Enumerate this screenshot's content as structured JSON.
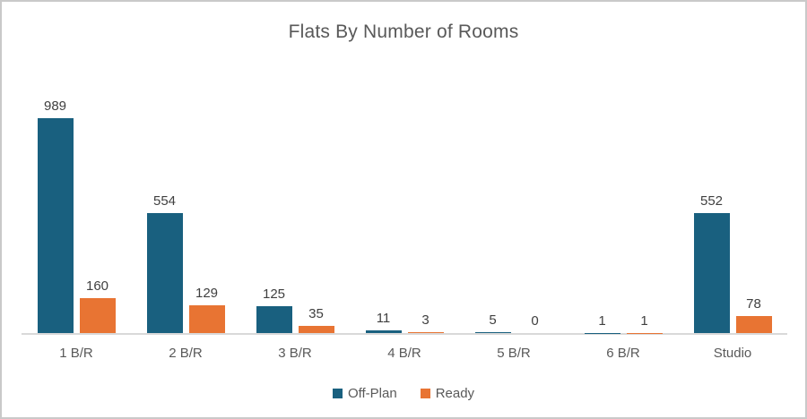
{
  "chart_data": {
    "type": "bar",
    "title": "Flats By Number of Rooms",
    "categories": [
      "1 B/R",
      "2 B/R",
      "3 B/R",
      "4 B/R",
      "5 B/R",
      "6 B/R",
      "Studio"
    ],
    "series": [
      {
        "name": "Off-Plan",
        "color": "#19607F",
        "values": [
          989,
          554,
          125,
          11,
          5,
          1,
          552
        ]
      },
      {
        "name": "Ready",
        "color": "#E87433",
        "values": [
          160,
          129,
          35,
          3,
          0,
          1,
          78
        ]
      }
    ],
    "xlabel": "",
    "ylabel": "",
    "ylim": [
      0,
      1000
    ],
    "grid": false,
    "data_labels": true,
    "legend_position": "bottom"
  },
  "colors": {
    "title_text": "#595959",
    "data_label_text": "#404040",
    "category_text": "#595959",
    "axis_line": "#d9d9d9",
    "frame_border": "#c9c9c9",
    "background": "#ffffff"
  }
}
